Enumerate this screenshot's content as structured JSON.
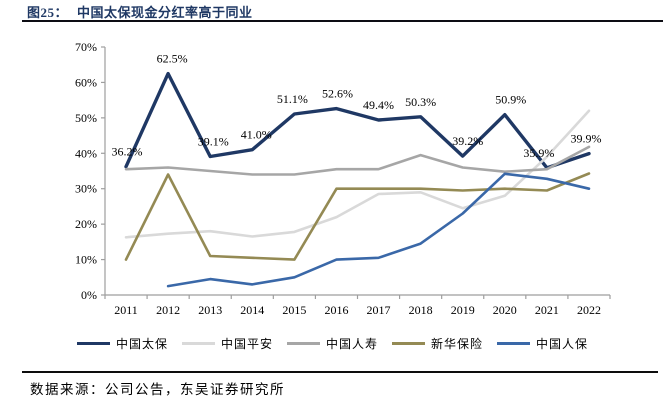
{
  "header": {
    "figure_no": "图25：",
    "title": "中国太保现金分红率高于同业"
  },
  "footer": {
    "source": "数据来源：公司公告，东吴证券研究所"
  },
  "chart_data": {
    "type": "line",
    "title": "中国太保现金分红率高于同业",
    "x": [
      "2011",
      "2012",
      "2013",
      "2014",
      "2015",
      "2016",
      "2017",
      "2018",
      "2019",
      "2020",
      "2021",
      "2022"
    ],
    "ylim": [
      0,
      70
    ],
    "ytick_step": 10,
    "yticks": [
      "0%",
      "10%",
      "20%",
      "30%",
      "40%",
      "50%",
      "60%",
      "70%"
    ],
    "grid": false,
    "legend_position": "bottom",
    "axis_color": "#9e9e9e",
    "series": [
      {
        "name": "中国太保",
        "color": "#1f3864",
        "values": [
          36.2,
          62.5,
          39.1,
          41.0,
          51.1,
          52.6,
          49.4,
          50.3,
          39.2,
          50.9,
          35.9,
          39.9
        ]
      },
      {
        "name": "中国平安",
        "color": "#d9d9d9",
        "values": [
          16.3,
          17.3,
          18.0,
          16.5,
          17.8,
          22.0,
          28.5,
          29.0,
          24.5,
          28.0,
          39.0,
          52.0
        ]
      },
      {
        "name": "中国人寿",
        "color": "#a6a6a6",
        "values": [
          35.5,
          36.0,
          35.0,
          34.0,
          34.0,
          35.5,
          35.5,
          39.5,
          36.0,
          34.8,
          35.5,
          41.8
        ]
      },
      {
        "name": "新华保险",
        "color": "#948a54",
        "values": [
          10.0,
          34.0,
          11.0,
          10.5,
          10.0,
          30.0,
          30.0,
          30.0,
          29.5,
          30.0,
          29.5,
          34.3
        ]
      },
      {
        "name": "中国人保",
        "color": "#3a68a8",
        "values": [
          null,
          2.5,
          4.5,
          3.0,
          5.0,
          10.0,
          10.5,
          14.5,
          23.0,
          34.2,
          32.8,
          30.0
        ]
      }
    ],
    "data_labels": {
      "series": "中国太保",
      "values": [
        "36.2%",
        "62.5%",
        "39.1%",
        "41.0%",
        "51.1%",
        "52.6%",
        "49.4%",
        "50.3%",
        "39.2%",
        "50.9%",
        "35.9%",
        "39.9%"
      ]
    }
  }
}
